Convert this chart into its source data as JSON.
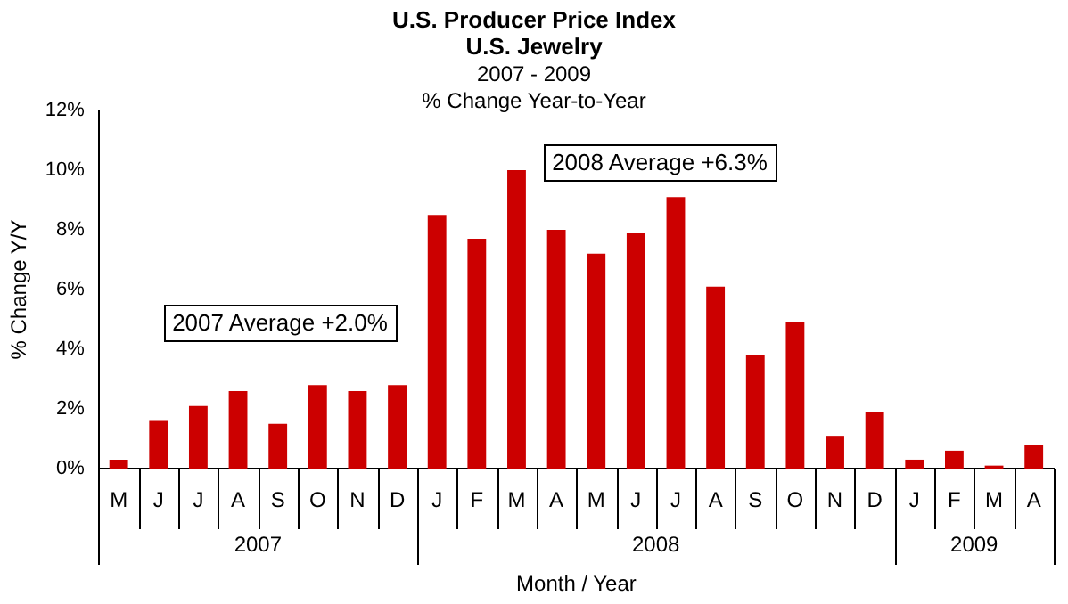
{
  "chart_data": {
    "type": "bar",
    "title": "U.S. Producer Price Index",
    "subtitle": "U.S. Jewelry\n2007 - 2009\n% Change Year-to-Year",
    "xlabel": "Month / Year",
    "ylabel": "% Change Y/Y",
    "categories": [
      "M",
      "J",
      "J",
      "A",
      "S",
      "O",
      "N",
      "D",
      "J",
      "F",
      "M",
      "A",
      "M",
      "J",
      "J",
      "A",
      "S",
      "O",
      "N",
      "D",
      "J",
      "F",
      "M",
      "A"
    ],
    "values": [
      0.3,
      1.6,
      2.1,
      2.6,
      1.5,
      2.8,
      2.6,
      2.8,
      8.5,
      7.7,
      10.0,
      8.0,
      7.2,
      7.9,
      9.1,
      6.1,
      3.8,
      4.9,
      1.1,
      1.9,
      0.3,
      0.6,
      0.1,
      0.8
    ],
    "color": "#cc0000",
    "ylim": [
      0,
      12
    ],
    "yticks": [
      {
        "value": 0,
        "label": "0%"
      },
      {
        "value": 2,
        "label": "2%"
      },
      {
        "value": 4,
        "label": "4%"
      },
      {
        "value": 6,
        "label": "6%"
      },
      {
        "value": 8,
        "label": "8%"
      },
      {
        "value": 10,
        "label": "10%"
      },
      {
        "value": 12,
        "label": "12%"
      }
    ],
    "grid": false,
    "legend": false,
    "annotations": [
      "2007 Average +2.0%",
      "2008 Average +6.3%",
      "2007",
      "2008",
      "2009"
    ]
  }
}
